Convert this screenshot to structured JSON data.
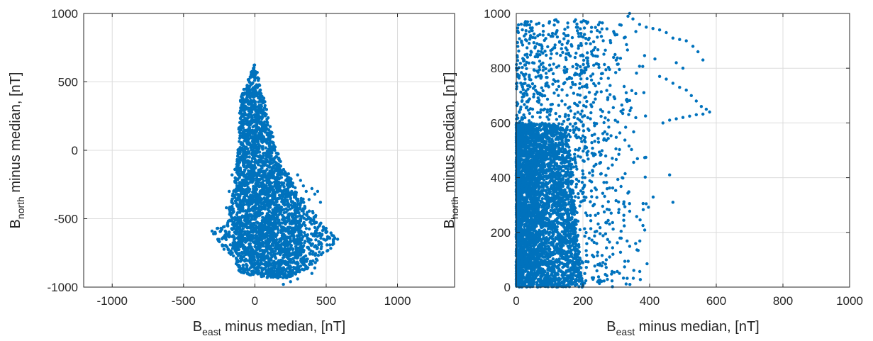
{
  "chart_data": [
    {
      "type": "scatter",
      "xlim": [
        -1200,
        1400
      ],
      "ylim": [
        -1000,
        1000
      ],
      "xticks": [
        -1000,
        -500,
        0,
        500,
        1000
      ],
      "yticks": [
        -1000,
        -500,
        0,
        500,
        1000
      ],
      "xlabel": {
        "main": "B",
        "sub": "east",
        "rest": " minus median, [nT]"
      },
      "ylabel": {
        "main": "B",
        "sub": "north",
        "rest": " minus median, [nT]"
      },
      "grid": true,
      "marker_color": "#0072BD",
      "cloud": {
        "description_points": [
          [
            0,
            640
          ],
          [
            -100,
            400
          ],
          [
            -120,
            0
          ],
          [
            -150,
            -300
          ],
          [
            -200,
            -500
          ],
          [
            -300,
            -600
          ],
          [
            -100,
            -900
          ],
          [
            200,
            -950
          ],
          [
            400,
            -850
          ],
          [
            550,
            -700
          ],
          [
            580,
            -650
          ],
          [
            450,
            -500
          ],
          [
            300,
            -300
          ],
          [
            150,
            0
          ],
          [
            60,
            400
          ],
          [
            0,
            640
          ]
        ],
        "n": 3800
      },
      "extra_points": [
        [
          -300,
          -590
        ],
        [
          -280,
          -600
        ],
        [
          -260,
          -570
        ],
        [
          -240,
          -590
        ],
        [
          -220,
          -560
        ],
        [
          -200,
          -420
        ],
        [
          -180,
          -300
        ],
        [
          -160,
          -180
        ],
        [
          -140,
          -140
        ],
        [
          -120,
          -120
        ],
        [
          300,
          -180
        ],
        [
          320,
          -220
        ],
        [
          340,
          -260
        ],
        [
          360,
          -300
        ],
        [
          380,
          -360
        ],
        [
          400,
          -280
        ],
        [
          420,
          -320
        ],
        [
          440,
          -300
        ],
        [
          460,
          -380
        ],
        [
          480,
          -560
        ],
        [
          500,
          -600
        ],
        [
          520,
          -640
        ],
        [
          540,
          -620
        ],
        [
          560,
          -640
        ],
        [
          580,
          -650
        ],
        [
          400,
          -900
        ],
        [
          420,
          -860
        ],
        [
          300,
          -940
        ],
        [
          250,
          -960
        ],
        [
          200,
          -980
        ],
        [
          350,
          -800
        ]
      ]
    },
    {
      "type": "scatter",
      "xlim": [
        0,
        1000
      ],
      "ylim": [
        0,
        1000
      ],
      "xticks": [
        0,
        200,
        400,
        600,
        800,
        1000
      ],
      "yticks": [
        0,
        200,
        400,
        600,
        800,
        1000
      ],
      "xlabel": {
        "main": "B",
        "sub": "east",
        "rest": " minus median, [nT]"
      },
      "ylabel": {
        "main": "B",
        "sub": "north",
        "rest": " minus median, [nT]"
      },
      "grid": true,
      "marker_color": "#0072BD",
      "dense_block": {
        "x": [
          0,
          200
        ],
        "y": [
          0,
          600
        ],
        "n": 3500
      },
      "sparse_region": {
        "x": [
          0,
          420
        ],
        "y": [
          0,
          980
        ],
        "n": 1400
      },
      "extra_points": [
        [
          580,
          640
        ],
        [
          570,
          650
        ],
        [
          555,
          660
        ],
        [
          540,
          680
        ],
        [
          525,
          700
        ],
        [
          510,
          720
        ],
        [
          490,
          730
        ],
        [
          470,
          745
        ],
        [
          450,
          760
        ],
        [
          430,
          770
        ],
        [
          560,
          830
        ],
        [
          545,
          860
        ],
        [
          530,
          880
        ],
        [
          510,
          900
        ],
        [
          490,
          905
        ],
        [
          470,
          910
        ],
        [
          450,
          930
        ],
        [
          430,
          940
        ],
        [
          410,
          945
        ],
        [
          390,
          950
        ],
        [
          370,
          960
        ],
        [
          350,
          980
        ],
        [
          335,
          990
        ],
        [
          340,
          1000
        ],
        [
          470,
          310
        ],
        [
          460,
          410
        ],
        [
          380,
          225
        ],
        [
          440,
          600
        ],
        [
          460,
          610
        ],
        [
          480,
          615
        ],
        [
          500,
          620
        ],
        [
          520,
          625
        ],
        [
          540,
          630
        ],
        [
          560,
          632
        ],
        [
          480,
          820
        ],
        [
          500,
          800
        ],
        [
          290,
          120
        ],
        [
          280,
          110
        ],
        [
          270,
          100
        ],
        [
          260,
          90
        ],
        [
          250,
          80
        ]
      ]
    }
  ]
}
